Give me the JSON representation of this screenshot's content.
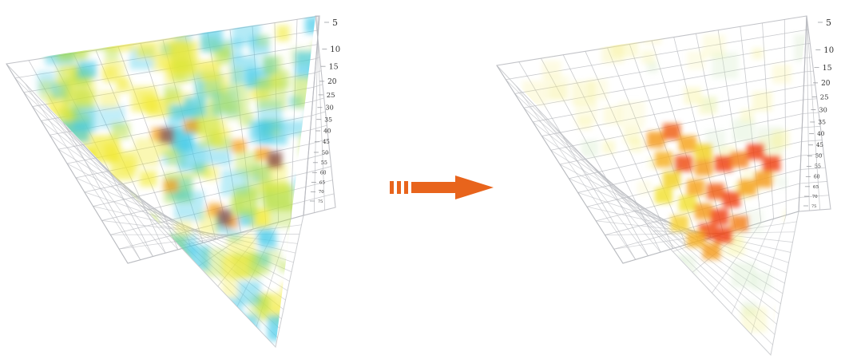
{
  "left_panel": {
    "tick_labels": [
      "5",
      "10",
      "15",
      "20",
      "25",
      "30",
      "35",
      "40",
      "45",
      "50",
      "55",
      "60",
      "65",
      "70",
      "75"
    ]
  },
  "right_panel": {
    "tick_labels": [
      "5",
      "10",
      "15",
      "20",
      "25",
      "30",
      "35",
      "40",
      "45",
      "50",
      "55",
      "60",
      "65",
      "70",
      "75"
    ]
  },
  "arrow": {
    "icon": "dashed-arrow-right-icon",
    "color": "#e8641c"
  },
  "colors": {
    "cyan": "#3fc9e8",
    "yellow": "#f2ea30",
    "lime": "#b7e04a",
    "orange": "#f6a21c",
    "red": "#ef3d12",
    "grid": "#b7b9be"
  }
}
